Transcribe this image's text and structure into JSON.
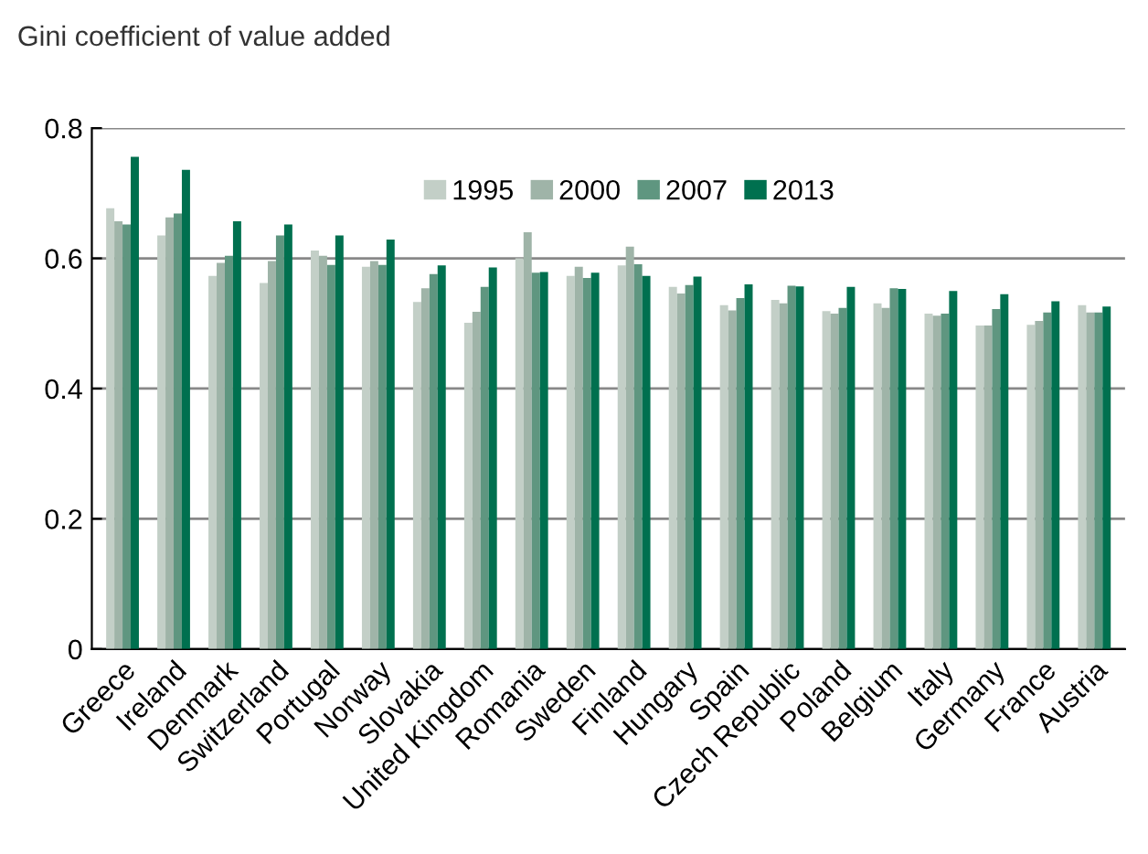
{
  "chart_data": {
    "type": "bar",
    "subtitle": "Gini coefficient of value added",
    "categories": [
      "Greece",
      "Ireland",
      "Denmark",
      "Switzerland",
      "Portugal",
      "Norway",
      "Slovakia",
      "United Kingdom",
      "Romania",
      "Sweden",
      "Finland",
      "Hungary",
      "Spain",
      "Czech Republic",
      "Poland",
      "Belgium",
      "Italy",
      "Germany",
      "France",
      "Austria"
    ],
    "series": [
      {
        "name": "1995",
        "color": "#c3cfc7",
        "values": [
          0.677,
          0.635,
          0.573,
          0.562,
          0.612,
          0.587,
          0.533,
          0.501,
          0.6,
          0.573,
          0.589,
          0.556,
          0.528,
          0.536,
          0.519,
          0.531,
          0.515,
          0.497,
          0.498,
          0.528
        ]
      },
      {
        "name": "2000",
        "color": "#9fb4a8",
        "values": [
          0.657,
          0.663,
          0.593,
          0.596,
          0.604,
          0.596,
          0.554,
          0.518,
          0.64,
          0.587,
          0.618,
          0.546,
          0.52,
          0.531,
          0.515,
          0.524,
          0.512,
          0.497,
          0.504,
          0.517
        ]
      },
      {
        "name": "2007",
        "color": "#5f9680",
        "values": [
          0.652,
          0.669,
          0.604,
          0.635,
          0.59,
          0.59,
          0.576,
          0.556,
          0.578,
          0.57,
          0.591,
          0.559,
          0.539,
          0.558,
          0.524,
          0.554,
          0.515,
          0.522,
          0.517,
          0.517
        ]
      },
      {
        "name": "2013",
        "color": "#00704f",
        "values": [
          0.756,
          0.736,
          0.657,
          0.652,
          0.635,
          0.629,
          0.589,
          0.586,
          0.579,
          0.578,
          0.573,
          0.572,
          0.56,
          0.557,
          0.556,
          0.553,
          0.55,
          0.545,
          0.534,
          0.526
        ]
      }
    ],
    "ylim": [
      0,
      0.8
    ],
    "yticks": [
      0,
      0.2,
      0.4,
      0.6,
      0.8
    ],
    "grid": "y",
    "legend": "top"
  }
}
